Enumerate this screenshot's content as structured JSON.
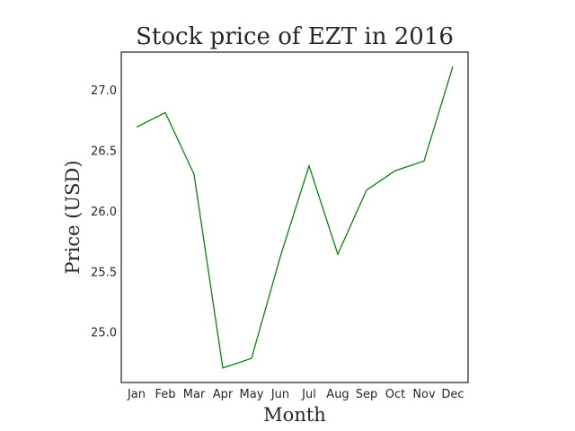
{
  "chart_data": {
    "type": "line",
    "title": "Stock price of EZT in 2016",
    "xlabel": "Month",
    "ylabel": "Price (USD)",
    "categories": [
      "Jan",
      "Feb",
      "Mar",
      "Apr",
      "May",
      "Jun",
      "Jul",
      "Aug",
      "Sep",
      "Oct",
      "Nov",
      "Dec"
    ],
    "series": [
      {
        "values": [
          26.7,
          26.82,
          26.31,
          24.71,
          24.79,
          25.63,
          26.38,
          25.65,
          26.18,
          26.34,
          26.42,
          27.2
        ],
        "color": "#008000"
      }
    ],
    "yticks": [
      25.0,
      25.5,
      26.0,
      26.5,
      27.0
    ],
    "ytick_labels": [
      "25.0",
      "25.5",
      "26.0",
      "26.5",
      "27.0"
    ],
    "ylim": [
      24.59,
      27.32
    ],
    "grid": false,
    "legend": "none"
  }
}
